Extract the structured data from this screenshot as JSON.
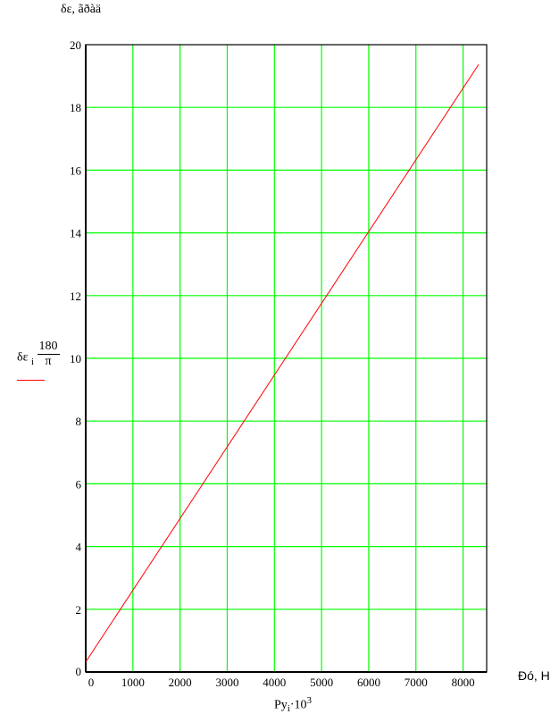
{
  "chart_data": {
    "type": "line",
    "title": "δε, ãðàä",
    "ylabel": {
      "main": "δε",
      "sub": "i",
      "factor_num": "180",
      "factor_den": "π"
    },
    "xlabel": {
      "main": "Py",
      "sub": "i",
      "factor": "·10",
      "exp": "3"
    },
    "x_unit_label": "Ðó,  Н",
    "xlim": [
      0,
      8500
    ],
    "ylim": [
      0,
      20
    ],
    "xticks": [
      0,
      1000,
      2000,
      3000,
      4000,
      5000,
      6000,
      7000,
      8000
    ],
    "yticks": [
      0,
      2,
      4,
      6,
      8,
      10,
      12,
      14,
      16,
      18,
      20
    ],
    "grid": true,
    "series": [
      {
        "color": "#ff0000",
        "x": [
          0,
          8330
        ],
        "y": [
          0.32,
          19.37
        ]
      }
    ],
    "colors": {
      "grid": "#00ff00",
      "axis": "#000000",
      "line": "#ff0000"
    }
  }
}
